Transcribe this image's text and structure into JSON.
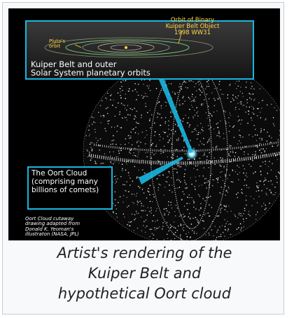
{
  "figure": {
    "inset": {
      "title_line1": "Kuiper Belt and outer",
      "title_line2": "Solar System planetary orbits",
      "pluto_line1": "Pluto's",
      "pluto_line2": "orbit",
      "binary_line1": "Orbit of Binary",
      "binary_line2": "Kuiper Belt Object",
      "binary_line3": "1998 WW31"
    },
    "callout": {
      "line1": "The Oort Cloud",
      "line2": "(comprising many",
      "line3": "billions of comets)"
    },
    "credit": {
      "line1": "Oort Cloud cutaway",
      "line2": "drawing adapted from",
      "line3": "Donald K. Yeoman's",
      "line4": "illustraton (NASA, JPL)"
    },
    "colors": {
      "accent": "#18b7e0",
      "label_yellow": "#ffd54a",
      "background": "#000000"
    }
  },
  "caption": {
    "line1": "Artist's rendering of the",
    "line2": "Kuiper Belt and",
    "line3": "hypothetical Oort cloud"
  }
}
